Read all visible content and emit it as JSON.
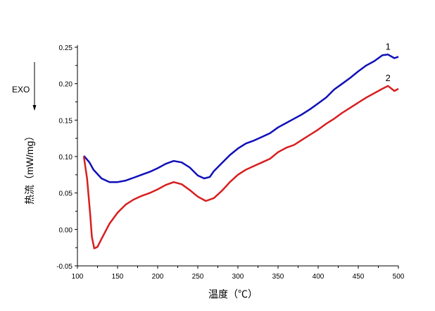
{
  "chart_data": {
    "type": "line",
    "title": "",
    "xlabel": "温度（℃）",
    "ylabel": "热流（mW/mg）",
    "xlim": [
      100,
      500
    ],
    "ylim": [
      -0.05,
      0.25
    ],
    "xticks": [
      "100",
      "150",
      "200",
      "250",
      "300",
      "350",
      "400",
      "450",
      "500"
    ],
    "yticks": [
      "-0.05",
      "0.00",
      "0.05",
      "0.10",
      "0.15",
      "0.20",
      "0.25"
    ],
    "grid": false,
    "annotation": "EXO",
    "series": [
      {
        "name": "1",
        "color": "#1010b8",
        "x": [
          108,
          115,
          120,
          130,
          140,
          150,
          160,
          170,
          180,
          190,
          200,
          210,
          220,
          230,
          240,
          250,
          258,
          265,
          270,
          280,
          290,
          300,
          310,
          320,
          330,
          340,
          350,
          360,
          370,
          380,
          390,
          400,
          410,
          420,
          430,
          440,
          450,
          460,
          470,
          480,
          487,
          495,
          500
        ],
        "y": [
          0.101,
          0.092,
          0.082,
          0.07,
          0.065,
          0.065,
          0.067,
          0.071,
          0.075,
          0.079,
          0.084,
          0.09,
          0.094,
          0.092,
          0.085,
          0.074,
          0.07,
          0.072,
          0.08,
          0.091,
          0.102,
          0.111,
          0.118,
          0.122,
          0.127,
          0.132,
          0.14,
          0.146,
          0.152,
          0.158,
          0.165,
          0.173,
          0.181,
          0.192,
          0.2,
          0.208,
          0.217,
          0.225,
          0.231,
          0.239,
          0.24,
          0.235,
          0.237
        ]
      },
      {
        "name": "2",
        "color": "#d81e1e",
        "x": [
          108,
          112,
          116,
          118,
          121,
          125,
          130,
          140,
          150,
          160,
          170,
          180,
          190,
          200,
          210,
          220,
          230,
          240,
          250,
          260,
          270,
          280,
          290,
          300,
          310,
          320,
          330,
          340,
          350,
          360,
          370,
          380,
          390,
          400,
          410,
          420,
          430,
          440,
          450,
          460,
          470,
          480,
          487,
          495,
          500
        ],
        "y": [
          0.1,
          0.07,
          0.02,
          -0.01,
          -0.026,
          -0.024,
          -0.013,
          0.008,
          0.023,
          0.034,
          0.041,
          0.046,
          0.05,
          0.055,
          0.061,
          0.065,
          0.062,
          0.054,
          0.045,
          0.039,
          0.043,
          0.053,
          0.065,
          0.075,
          0.082,
          0.087,
          0.092,
          0.097,
          0.106,
          0.112,
          0.116,
          0.123,
          0.13,
          0.137,
          0.145,
          0.152,
          0.16,
          0.167,
          0.174,
          0.181,
          0.187,
          0.193,
          0.197,
          0.19,
          0.193
        ]
      }
    ]
  }
}
